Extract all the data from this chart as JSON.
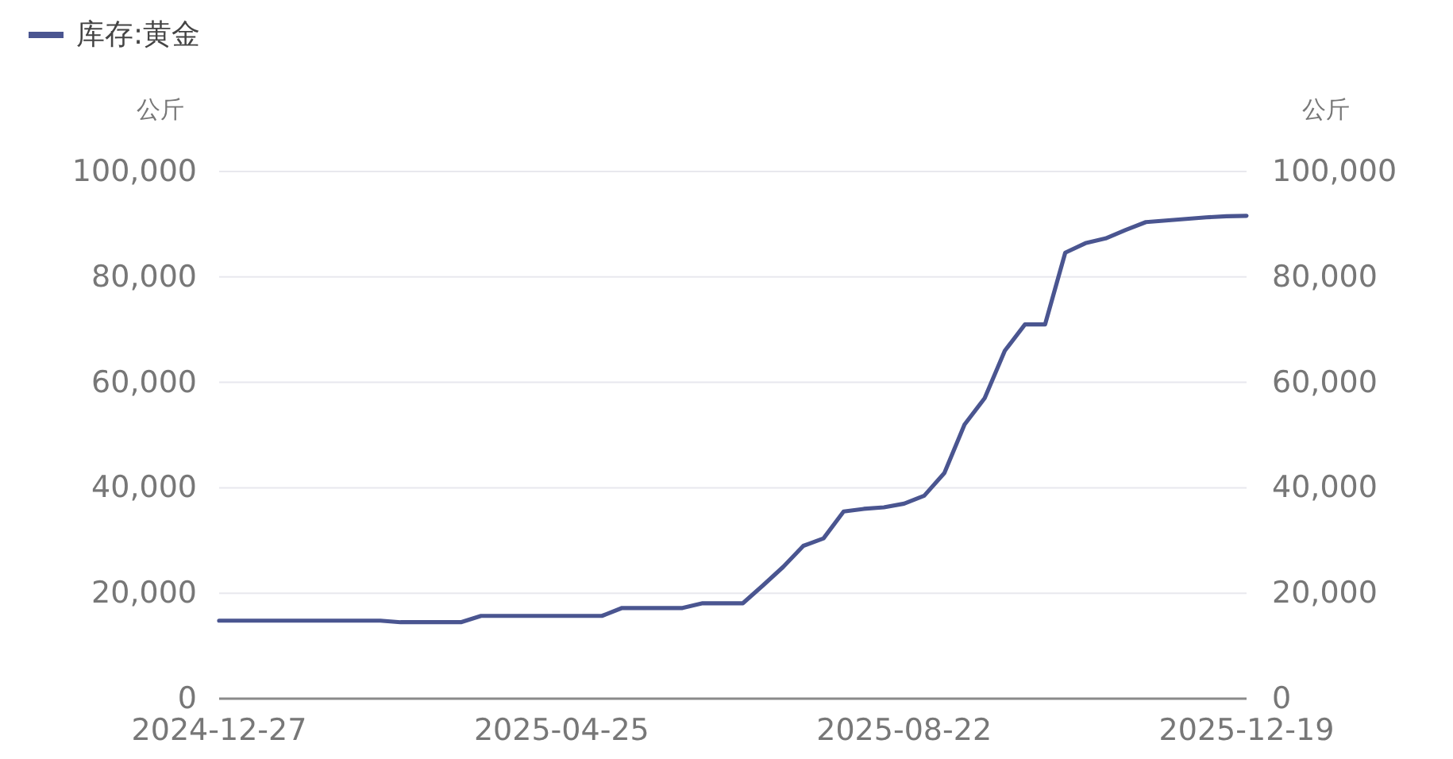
{
  "chart_data": {
    "type": "line",
    "legend": "top left",
    "grid": "y",
    "x": [
      "2024-12-27",
      "2025-01-03",
      "2025-01-10",
      "2025-01-17",
      "2025-01-24",
      "2025-01-31",
      "2025-02-07",
      "2025-02-14",
      "2025-02-21",
      "2025-02-28",
      "2025-03-07",
      "2025-03-14",
      "2025-03-21",
      "2025-03-28",
      "2025-04-04",
      "2025-04-11",
      "2025-04-18",
      "2025-04-25",
      "2025-05-02",
      "2025-05-09",
      "2025-05-16",
      "2025-05-23",
      "2025-05-30",
      "2025-06-06",
      "2025-06-13",
      "2025-06-20",
      "2025-06-27",
      "2025-07-04",
      "2025-07-11",
      "2025-07-18",
      "2025-07-25",
      "2025-08-01",
      "2025-08-08",
      "2025-08-15",
      "2025-08-22",
      "2025-08-29",
      "2025-09-05",
      "2025-09-12",
      "2025-09-19",
      "2025-09-26",
      "2025-10-03",
      "2025-10-10",
      "2025-10-17",
      "2025-10-24",
      "2025-10-31",
      "2025-11-07",
      "2025-11-14",
      "2025-11-21",
      "2025-11-28",
      "2025-12-05",
      "2025-12-12",
      "2025-12-19"
    ],
    "series": [
      {
        "name": "库存:黄金",
        "color": "#4a5590",
        "values": [
          14800,
          14800,
          14800,
          14800,
          14800,
          14800,
          14800,
          14800,
          14800,
          14500,
          14500,
          14500,
          14500,
          15700,
          15700,
          15700,
          15700,
          15700,
          15700,
          15700,
          17200,
          17200,
          17200,
          17200,
          18100,
          18100,
          18100,
          21500,
          25000,
          29000,
          30400,
          35500,
          36000,
          36300,
          37000,
          38500,
          42800,
          52000,
          57000,
          66000,
          71000,
          71000,
          84600,
          86400,
          87300,
          88900,
          90400,
          90700,
          91000,
          91300,
          91500,
          91600
        ]
      }
    ],
    "xlim": [
      "2024-12-27",
      "2025-12-19"
    ],
    "xticks": [
      "2024-12-27",
      "2025-04-25",
      "2025-08-22",
      "2025-12-19"
    ],
    "ylabel": "公斤",
    "ylim": [
      0,
      100000
    ],
    "yticks": [
      {
        "value": 0,
        "label": "0"
      },
      {
        "value": 20000,
        "label": "20,000"
      },
      {
        "value": 40000,
        "label": "40,000"
      },
      {
        "value": 60000,
        "label": "60,000"
      },
      {
        "value": 80000,
        "label": "80,000"
      },
      {
        "value": 100000,
        "label": "100,000"
      }
    ],
    "y2label": "公斤",
    "y2lim": [
      0,
      100000
    ],
    "y2ticks": [
      {
        "value": 0,
        "label": "0"
      },
      {
        "value": 20000,
        "label": "20,000"
      },
      {
        "value": 40000,
        "label": "40,000"
      },
      {
        "value": 60000,
        "label": "60,000"
      },
      {
        "value": 80000,
        "label": "80,000"
      },
      {
        "value": 100000,
        "label": "100,000"
      }
    ],
    "line_style": "solid",
    "marker": "none"
  }
}
